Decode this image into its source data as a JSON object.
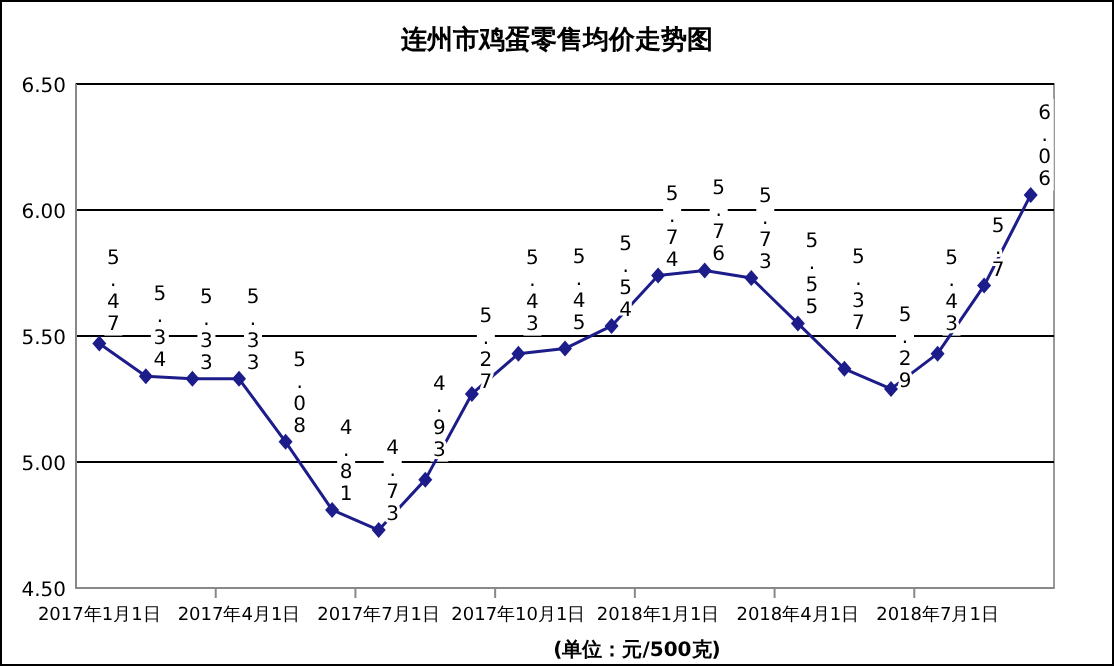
{
  "chart_data": {
    "type": "line",
    "title": "连州市鸡蛋零售均价走势图",
    "categories": [
      "2017年1月1日",
      null,
      null,
      "2017年4月1日",
      null,
      null,
      "2017年7月1日",
      null,
      null,
      "2017年10月1日",
      null,
      null,
      "2018年1月1日",
      null,
      null,
      "2018年4月1日",
      null,
      null,
      "2018年7月1日",
      null,
      null
    ],
    "series": [
      {
        "color": "#1c1c8a",
        "values": [
          5.47,
          5.34,
          5.33,
          5.33,
          5.08,
          4.81,
          4.73,
          4.93,
          5.27,
          5.43,
          5.45,
          5.54,
          5.74,
          5.76,
          5.73,
          5.55,
          5.37,
          5.29,
          5.43,
          5.7,
          6.06
        ]
      }
    ],
    "ylim": [
      4.5,
      6.5
    ],
    "yticks": [
      {
        "value": 4.5,
        "label": "4.50"
      },
      {
        "value": 5,
        "label": "5.00"
      },
      {
        "value": 5.5,
        "label": "5.50"
      },
      {
        "value": 6,
        "label": "6.00"
      },
      {
        "value": 6.5,
        "label": "6.50"
      }
    ],
    "grid": "y",
    "marker": "diamond",
    "data_labels": true,
    "annotations": [
      "(单位：元/500克)"
    ]
  }
}
